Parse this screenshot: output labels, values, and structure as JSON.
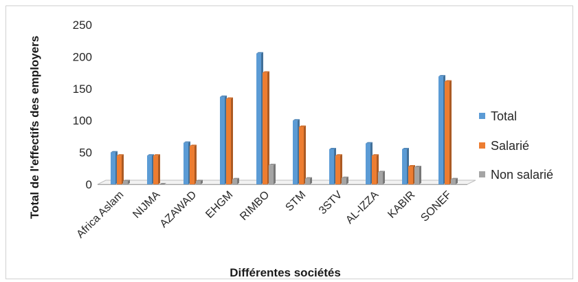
{
  "chart_data": {
    "type": "bar",
    "title": "",
    "xlabel": "Différentes sociétés",
    "ylabel": "Total de l'effectifs des employers",
    "ylim": [
      0,
      250
    ],
    "yticks": [
      "0",
      "50",
      "100",
      "150",
      "200",
      "250"
    ],
    "grid": false,
    "legend_position": "right",
    "categories": [
      "Africa Aslam",
      "NIJMA",
      "AZAWAD",
      "EHGM",
      "RIMBO",
      "STM",
      "3STV",
      "AL-IZZA",
      "KABIR",
      "SONEF"
    ],
    "series": [
      {
        "name": "Total",
        "color": "#5b9bd5",
        "values": [
          50,
          45,
          65,
          137,
          205,
          100,
          55,
          64,
          55,
          169
        ]
      },
      {
        "name": "Salarié",
        "color": "#ed7d31",
        "values": [
          45,
          45,
          60,
          134,
          175,
          90,
          45,
          45,
          28,
          161
        ]
      },
      {
        "name": "Non salarié",
        "color": "#a5a5a5",
        "values": [
          5,
          0,
          5,
          8,
          30,
          9,
          10,
          19,
          27,
          8
        ]
      }
    ]
  }
}
